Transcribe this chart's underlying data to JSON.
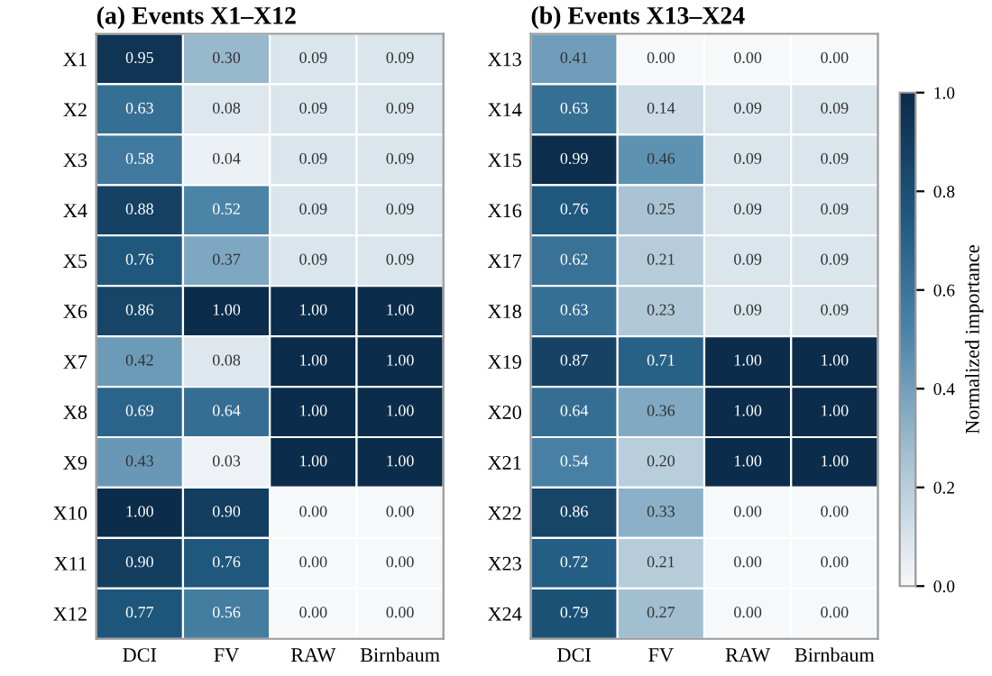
{
  "chart_data": [
    {
      "type": "heatmap",
      "title": "(a) Events X1–X12",
      "categories": [
        "DCI",
        "FV",
        "RAW",
        "Birnbaum"
      ],
      "y_categories": [
        "X1",
        "X2",
        "X3",
        "X4",
        "X5",
        "X6",
        "X7",
        "X8",
        "X9",
        "X10",
        "X11",
        "X12"
      ],
      "cells": [
        [
          0.95,
          0.3,
          0.09,
          0.09
        ],
        [
          0.63,
          0.08,
          0.09,
          0.09
        ],
        [
          0.58,
          0.04,
          0.09,
          0.09
        ],
        [
          0.88,
          0.52,
          0.09,
          0.09
        ],
        [
          0.76,
          0.37,
          0.09,
          0.09
        ],
        [
          0.86,
          1.0,
          1.0,
          1.0
        ],
        [
          0.42,
          0.08,
          1.0,
          1.0
        ],
        [
          0.69,
          0.64,
          1.0,
          1.0
        ],
        [
          0.43,
          0.03,
          1.0,
          1.0
        ],
        [
          1.0,
          0.9,
          0.0,
          0.0
        ],
        [
          0.9,
          0.76,
          0.0,
          0.0
        ],
        [
          0.77,
          0.56,
          0.0,
          0.0
        ]
      ],
      "cell_labels": [
        [
          "0.95",
          "0.30",
          "0.09",
          "0.09"
        ],
        [
          "0.63",
          "0.08",
          "0.09",
          "0.09"
        ],
        [
          "0.58",
          "0.04",
          "0.09",
          "0.09"
        ],
        [
          "0.88",
          "0.52",
          "0.09",
          "0.09"
        ],
        [
          "0.76",
          "0.37",
          "0.09",
          "0.09"
        ],
        [
          "0.86",
          "1.00",
          "1.00",
          "1.00"
        ],
        [
          "0.42",
          "0.08",
          "1.00",
          "1.00"
        ],
        [
          "0.69",
          "0.64",
          "1.00",
          "1.00"
        ],
        [
          "0.43",
          "0.03",
          "1.00",
          "1.00"
        ],
        [
          "1.00",
          "0.90",
          "0.00",
          "0.00"
        ],
        [
          "0.90",
          "0.76",
          "0.00",
          "0.00"
        ],
        [
          "0.77",
          "0.56",
          "0.00",
          "0.00"
        ]
      ]
    },
    {
      "type": "heatmap",
      "title": "(b) Events X13–X24",
      "categories": [
        "DCI",
        "FV",
        "RAW",
        "Birnbaum"
      ],
      "y_categories": [
        "X13",
        "X14",
        "X15",
        "X16",
        "X17",
        "X18",
        "X19",
        "X20",
        "X21",
        "X22",
        "X23",
        "X24"
      ],
      "cells": [
        [
          0.41,
          0.0,
          0.0,
          0.0
        ],
        [
          0.63,
          0.14,
          0.09,
          0.09
        ],
        [
          0.99,
          0.46,
          0.09,
          0.09
        ],
        [
          0.76,
          0.25,
          0.09,
          0.09
        ],
        [
          0.62,
          0.21,
          0.09,
          0.09
        ],
        [
          0.63,
          0.23,
          0.09,
          0.09
        ],
        [
          0.87,
          0.71,
          1.0,
          1.0
        ],
        [
          0.64,
          0.36,
          1.0,
          1.0
        ],
        [
          0.54,
          0.2,
          1.0,
          1.0
        ],
        [
          0.86,
          0.33,
          0.0,
          0.0
        ],
        [
          0.72,
          0.21,
          0.0,
          0.0
        ],
        [
          0.79,
          0.27,
          0.0,
          0.0
        ]
      ],
      "cell_labels": [
        [
          "0.41",
          "0.00",
          "0.00",
          "0.00"
        ],
        [
          "0.63",
          "0.14",
          "0.09",
          "0.09"
        ],
        [
          "0.99",
          "0.46",
          "0.09",
          "0.09"
        ],
        [
          "0.76",
          "0.25",
          "0.09",
          "0.09"
        ],
        [
          "0.62",
          "0.21",
          "0.09",
          "0.09"
        ],
        [
          "0.63",
          "0.23",
          "0.09",
          "0.09"
        ],
        [
          "0.87",
          "0.71",
          "1.00",
          "1.00"
        ],
        [
          "0.64",
          "0.36",
          "1.00",
          "1.00"
        ],
        [
          "0.54",
          "0.20",
          "1.00",
          "1.00"
        ],
        [
          "0.86",
          "0.33",
          "0.00",
          "0.00"
        ],
        [
          "0.72",
          "0.21",
          "0.00",
          "0.00"
        ],
        [
          "0.79",
          "0.27",
          "0.00",
          "0.00"
        ]
      ],
      "clim": [
        0,
        1
      ],
      "cticks": [
        {
          "value": 0,
          "label": "0.0"
        },
        {
          "value": 0.2,
          "label": "0.2"
        },
        {
          "value": 0.4,
          "label": "0.4"
        },
        {
          "value": 0.6,
          "label": "0.6"
        },
        {
          "value": 0.8,
          "label": "0.8"
        },
        {
          "value": 1,
          "label": "1.0"
        }
      ],
      "clabel": "Normalized importance"
    }
  ]
}
